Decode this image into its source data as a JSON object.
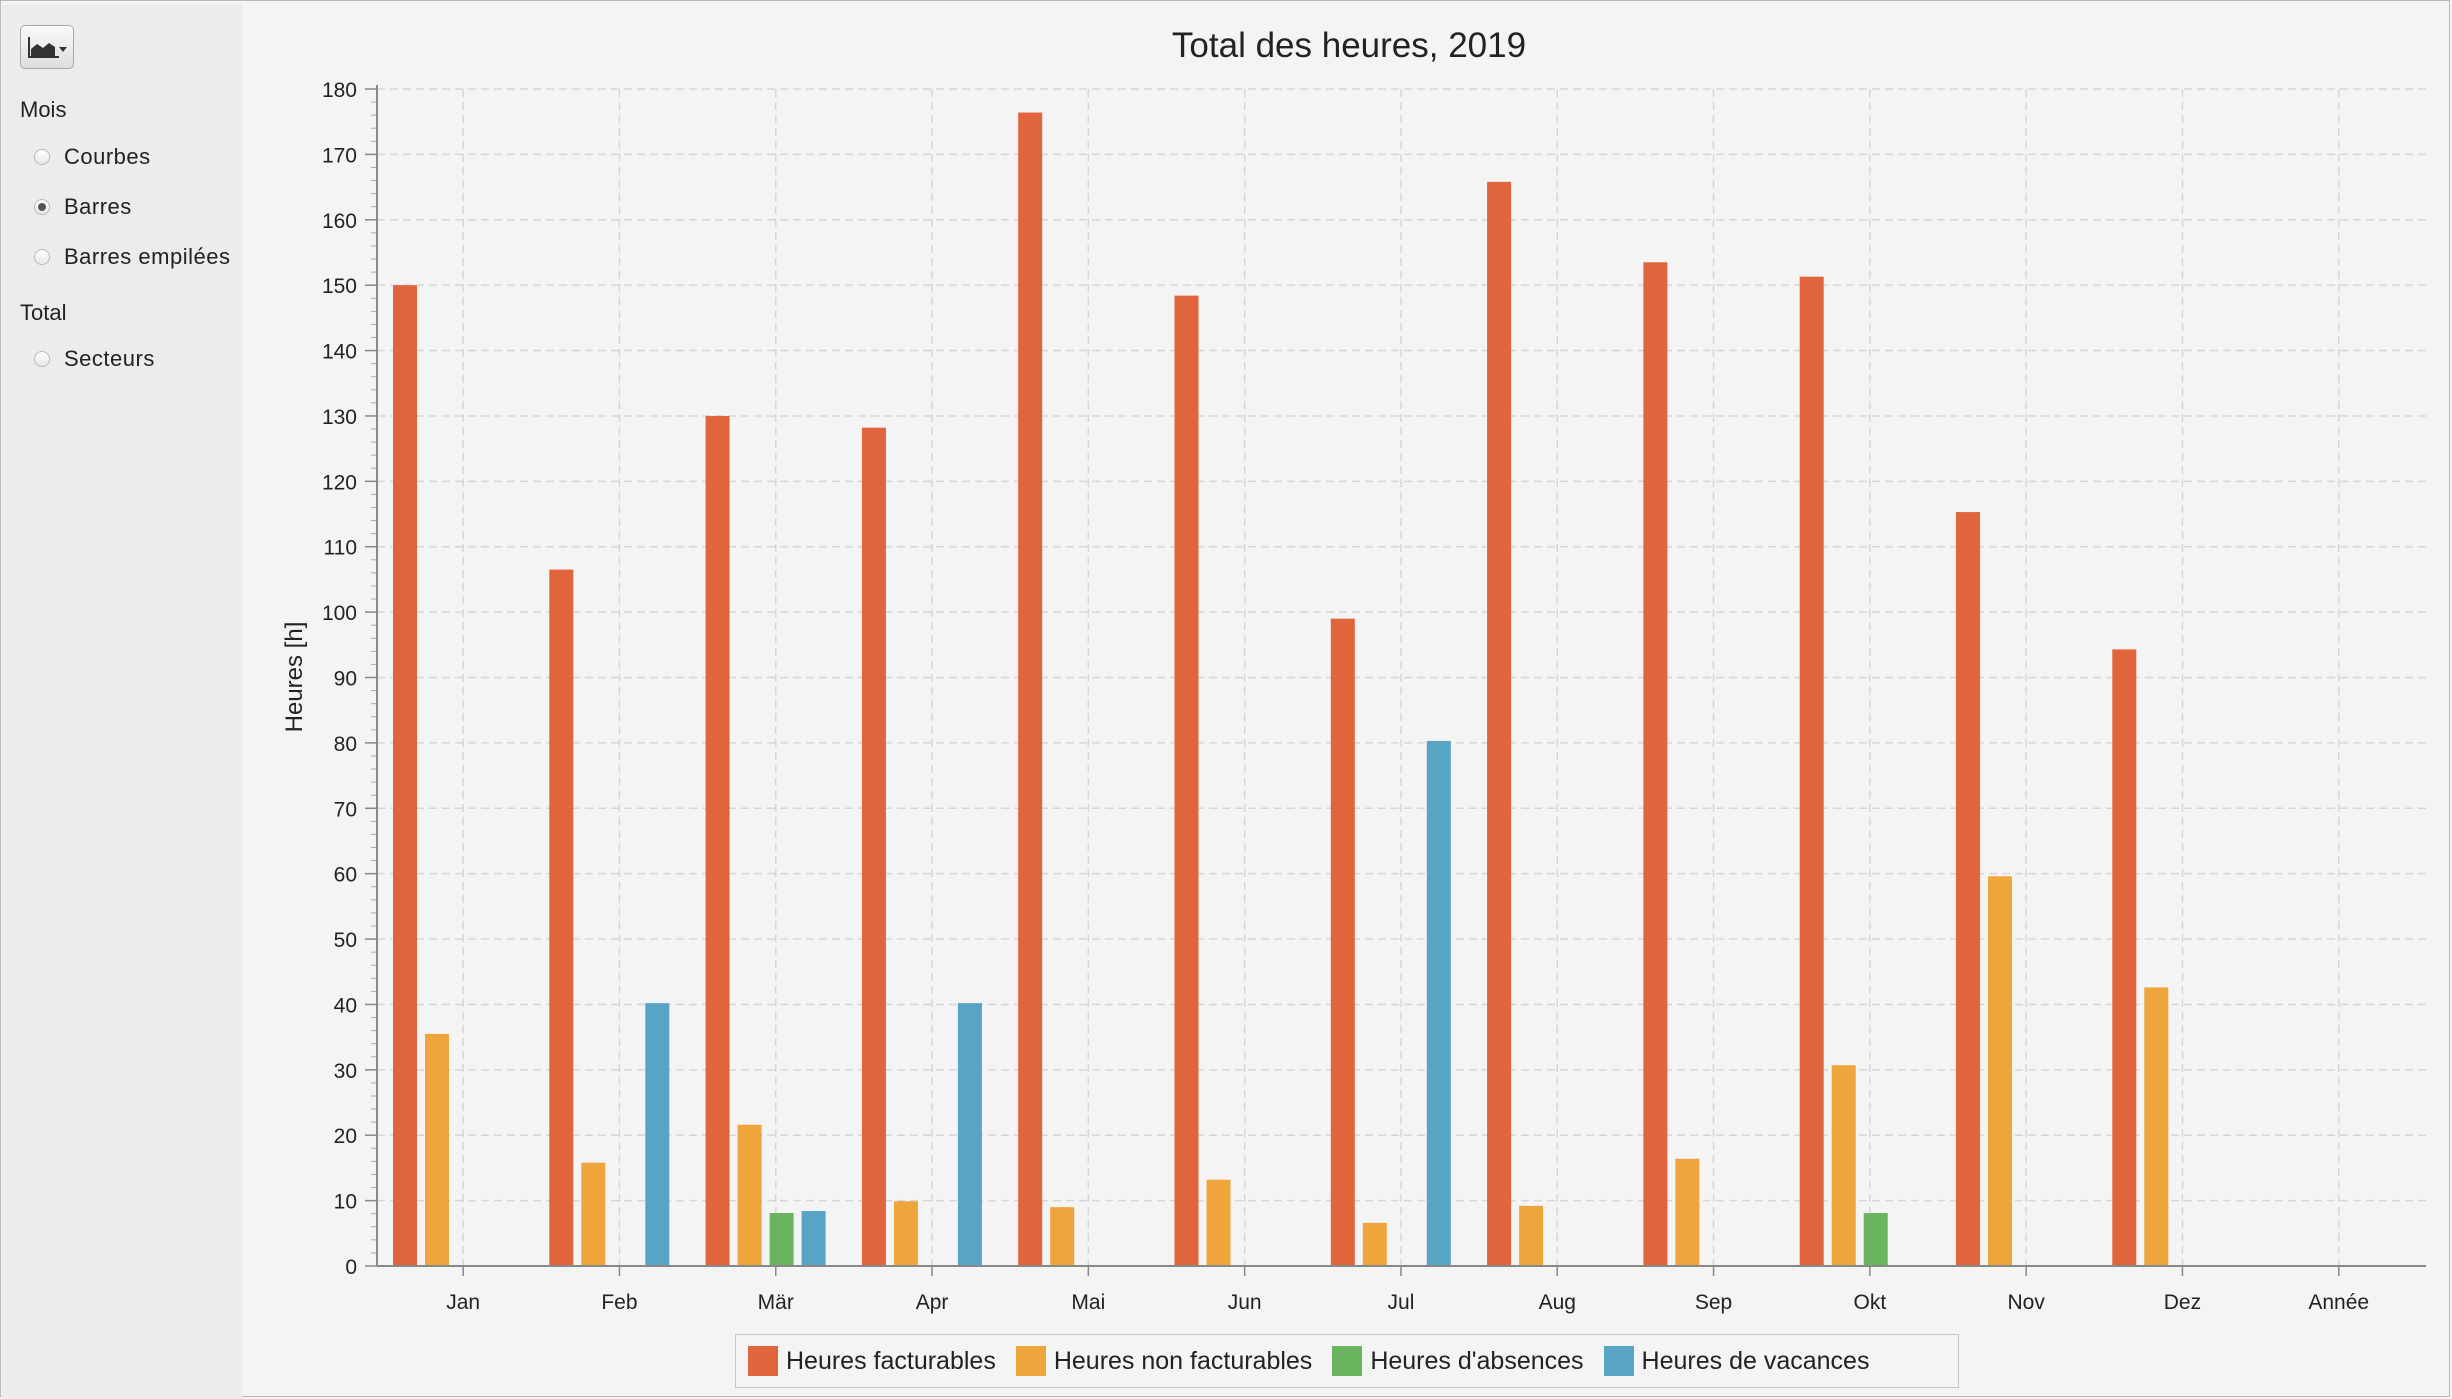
{
  "sidebar": {
    "section_month": "Mois",
    "option_lines": "Courbes",
    "option_bars": "Barres",
    "option_stacked": "Barres empilées",
    "section_total": "Total",
    "option_pie": "Secteurs",
    "selected": "Barres",
    "chart_type_icon": "area-chart-icon"
  },
  "colors": {
    "billable": "#e0643c",
    "non_billable": "#eea53b",
    "absence": "#6ab45f",
    "vacation": "#57a4c4"
  },
  "chart_data": {
    "type": "bar",
    "title": "Total des heures, 2019",
    "ylabel": "Heures [h]",
    "xlabel": "",
    "ylim": [
      0,
      180
    ],
    "ytick_step": 10,
    "grid": true,
    "legend_position": "bottom",
    "categories": [
      "Jan",
      "Feb",
      "Mär",
      "Apr",
      "Mai",
      "Jun",
      "Jul",
      "Aug",
      "Sep",
      "Okt",
      "Nov",
      "Dez",
      "Année"
    ],
    "series": [
      {
        "name": "Heures facturables",
        "color": "#e0643c",
        "values": [
          150,
          106.5,
          130,
          128.2,
          176.4,
          148.4,
          99,
          165.8,
          153.5,
          151.3,
          115.3,
          94.3,
          null
        ]
      },
      {
        "name": "Heures non facturables",
        "color": "#eea53b",
        "values": [
          35.5,
          15.8,
          21.6,
          9.9,
          9.0,
          13.2,
          6.6,
          9.2,
          16.4,
          30.7,
          59.6,
          42.6,
          null
        ]
      },
      {
        "name": "Heures d'absences",
        "color": "#6ab45f",
        "values": [
          null,
          null,
          8.1,
          null,
          null,
          null,
          null,
          null,
          null,
          8.1,
          null,
          null,
          null
        ]
      },
      {
        "name": "Heures de vacances",
        "color": "#57a4c4",
        "values": [
          null,
          40.2,
          8.4,
          40.2,
          null,
          null,
          80.3,
          null,
          null,
          null,
          null,
          null,
          null
        ]
      }
    ]
  }
}
